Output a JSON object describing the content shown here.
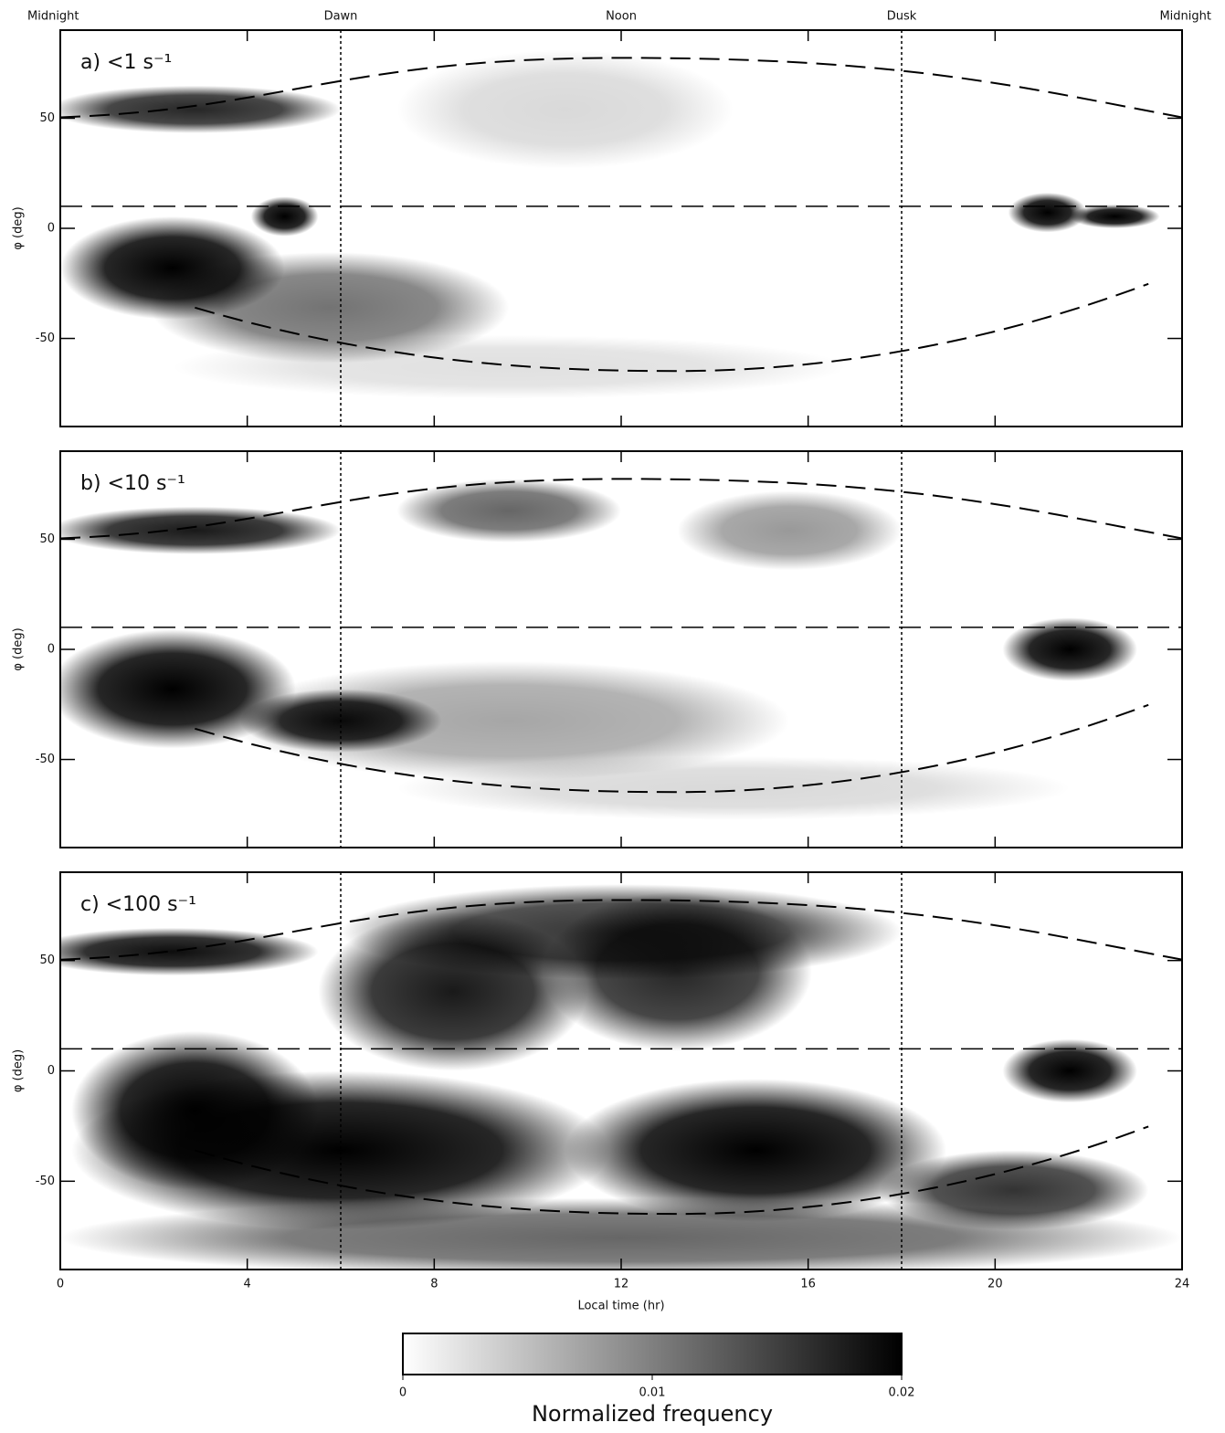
{
  "chart_data": [
    {
      "type": "heatmap",
      "label": "a) <1 s⁻¹",
      "ylabel": "φ (deg)",
      "xlim": [
        0,
        24
      ],
      "xticks": [
        0,
        4,
        8,
        12,
        16,
        20,
        24
      ],
      "ylim": [
        -90,
        90
      ],
      "yticks": [
        -50,
        0,
        50
      ],
      "top_labels": [
        {
          "value": 0,
          "label": "Midnight"
        },
        {
          "value": 6,
          "label": "Dawn"
        },
        {
          "value": 12,
          "label": "Noon"
        },
        {
          "value": 18,
          "label": "Dusk"
        },
        {
          "value": 24,
          "label": "Midnight"
        }
      ],
      "vlines": [
        6,
        18
      ],
      "hlines": [
        10
      ]
    },
    {
      "type": "heatmap",
      "label": "b) <10 s⁻¹",
      "ylabel": "φ (deg)",
      "xlim": [
        0,
        24
      ],
      "xticks": [
        0,
        4,
        8,
        12,
        16,
        20,
        24
      ],
      "ylim": [
        -90,
        90
      ],
      "yticks": [
        -50,
        0,
        50
      ],
      "vlines": [
        6,
        18
      ],
      "hlines": [
        10
      ]
    },
    {
      "type": "heatmap",
      "label": "c) <100 s⁻¹",
      "ylabel": "φ (deg)",
      "xlabel": "Local time (hr)",
      "xlim": [
        0,
        24
      ],
      "xticks": [
        0,
        4,
        8,
        12,
        16,
        20,
        24
      ],
      "ylim": [
        -90,
        90
      ],
      "yticks": [
        -50,
        0,
        50
      ],
      "vlines": [
        6,
        18
      ],
      "hlines": [
        10
      ]
    },
    {
      "type": "colorbar",
      "label": "Normalized frequency",
      "xlim": [
        0,
        0.02
      ],
      "xticks": [
        0,
        0.01,
        0.02
      ],
      "colors": [
        "#ffffff",
        "#000000"
      ]
    }
  ]
}
